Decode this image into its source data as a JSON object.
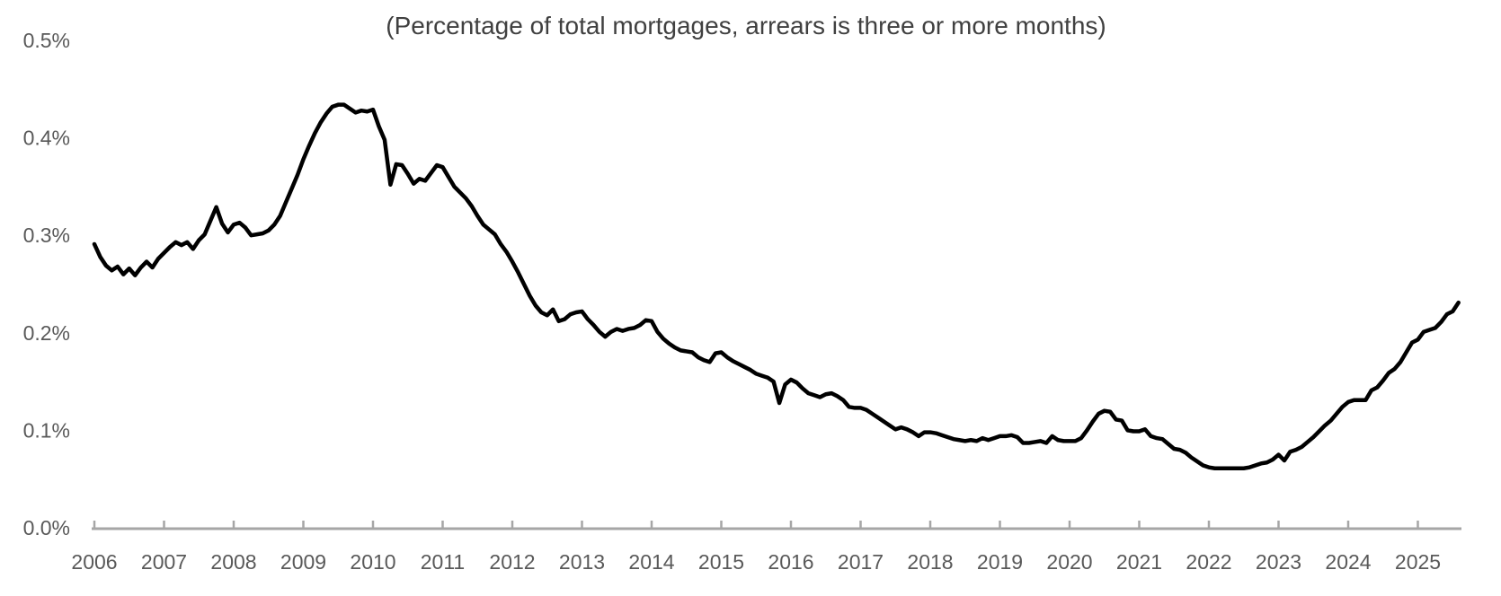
{
  "chart_data": {
    "type": "line",
    "title": "(Percentage of total mortgages, arrears is three or more months)",
    "unit": "percent of total mortgages",
    "frequency": "monthly",
    "x_start": "2006-01",
    "x_end": "2025-08",
    "ylim": [
      0,
      0.5
    ],
    "grid": false,
    "legend_position": "none",
    "y_tick_labels": [
      "0.5%",
      "0.4%",
      "0.3%",
      "0.2%",
      "0.1%",
      "0.0%"
    ],
    "x_tick_labels": [
      "2006",
      "2007",
      "2008",
      "2009",
      "2010",
      "2011",
      "2012",
      "2013",
      "2014",
      "2015",
      "2016",
      "2017",
      "2018",
      "2019",
      "2020",
      "2021",
      "2022",
      "2023",
      "2024",
      "2025"
    ],
    "colors": {
      "line": "#000000",
      "axis": "#a6a6a6",
      "tick_label": "#595959",
      "title": "#404040",
      "background": "#ffffff"
    },
    "series": [
      {
        "name": "mortgages-in-arrears-three-or-more-months",
        "values": [
          0.291,
          0.278,
          0.269,
          0.264,
          0.268,
          0.26,
          0.266,
          0.259,
          0.267,
          0.273,
          0.267,
          0.276,
          0.282,
          0.288,
          0.293,
          0.29,
          0.293,
          0.286,
          0.295,
          0.301,
          0.315,
          0.329,
          0.312,
          0.303,
          0.311,
          0.313,
          0.308,
          0.3,
          0.301,
          0.302,
          0.305,
          0.311,
          0.32,
          0.334,
          0.348,
          0.362,
          0.378,
          0.392,
          0.405,
          0.416,
          0.425,
          0.432,
          0.434,
          0.434,
          0.43,
          0.426,
          0.428,
          0.427,
          0.429,
          0.412,
          0.398,
          0.352,
          0.373,
          0.372,
          0.363,
          0.353,
          0.358,
          0.356,
          0.364,
          0.372,
          0.37,
          0.36,
          0.35,
          0.344,
          0.338,
          0.33,
          0.32,
          0.311,
          0.306,
          0.301,
          0.291,
          0.283,
          0.273,
          0.262,
          0.25,
          0.238,
          0.228,
          0.221,
          0.218,
          0.224,
          0.212,
          0.214,
          0.219,
          0.221,
          0.222,
          0.214,
          0.208,
          0.201,
          0.196,
          0.201,
          0.204,
          0.202,
          0.204,
          0.205,
          0.208,
          0.213,
          0.212,
          0.201,
          0.194,
          0.189,
          0.185,
          0.182,
          0.181,
          0.18,
          0.175,
          0.172,
          0.17,
          0.179,
          0.18,
          0.175,
          0.171,
          0.168,
          0.165,
          0.162,
          0.158,
          0.156,
          0.154,
          0.15,
          0.128,
          0.147,
          0.152,
          0.149,
          0.143,
          0.138,
          0.136,
          0.134,
          0.137,
          0.138,
          0.135,
          0.131,
          0.124,
          0.123,
          0.123,
          0.121,
          0.117,
          0.113,
          0.109,
          0.105,
          0.101,
          0.103,
          0.101,
          0.098,
          0.094,
          0.098,
          0.098,
          0.097,
          0.095,
          0.093,
          0.091,
          0.09,
          0.089,
          0.09,
          0.089,
          0.092,
          0.09,
          0.092,
          0.094,
          0.094,
          0.095,
          0.093,
          0.087,
          0.087,
          0.088,
          0.089,
          0.087,
          0.094,
          0.09,
          0.089,
          0.089,
          0.089,
          0.092,
          0.1,
          0.109,
          0.117,
          0.12,
          0.119,
          0.111,
          0.11,
          0.1,
          0.099,
          0.099,
          0.101,
          0.094,
          0.092,
          0.091,
          0.086,
          0.081,
          0.08,
          0.077,
          0.072,
          0.068,
          0.064,
          0.062,
          0.061,
          0.061,
          0.061,
          0.061,
          0.061,
          0.061,
          0.062,
          0.064,
          0.066,
          0.067,
          0.07,
          0.075,
          0.069,
          0.078,
          0.08,
          0.083,
          0.088,
          0.093,
          0.099,
          0.105,
          0.11,
          0.117,
          0.124,
          0.129,
          0.131,
          0.131,
          0.131,
          0.141,
          0.144,
          0.151,
          0.159,
          0.163,
          0.17,
          0.18,
          0.19,
          0.193,
          0.201,
          0.203,
          0.205,
          0.211,
          0.219,
          0.222,
          0.231
        ]
      }
    ]
  }
}
